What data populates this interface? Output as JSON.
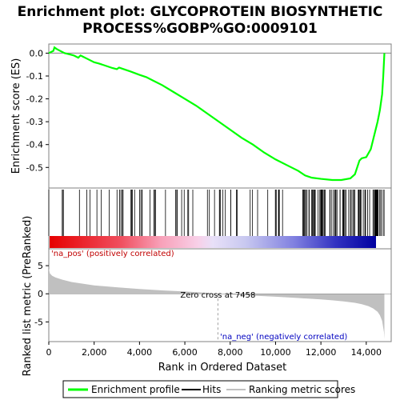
{
  "chart_data": [
    {
      "type": "line",
      "title_line1": "Enrichment plot: GLYCOPROTEIN BIOSYNTHETIC",
      "title_line2": "PROCESS%GOBP%GO:0009101",
      "ylabel": "Enrichment score (ES)",
      "ylim": [
        -0.59,
        0.04
      ],
      "xlim": [
        0,
        15100
      ],
      "yticks": [
        0.0,
        -0.1,
        -0.2,
        -0.3,
        -0.4,
        -0.5
      ],
      "ytick_labels": [
        "0.0",
        "-0.1",
        "-0.2",
        "-0.3",
        "-0.4",
        "-0.5"
      ],
      "line_color": "#00ff00",
      "series": [
        {
          "name": "Enrichment profile",
          "x": [
            0,
            100,
            200,
            250,
            350,
            500,
            700,
            900,
            1100,
            1300,
            1400,
            1500,
            1700,
            2000,
            2200,
            2500,
            2800,
            3000,
            3100,
            3300,
            3600,
            4000,
            4300,
            4600,
            5000,
            5500,
            6000,
            6500,
            7000,
            7500,
            8000,
            8500,
            9000,
            9500,
            10000,
            10500,
            11000,
            11300,
            11600,
            12000,
            12500,
            12900,
            13300,
            13500,
            13700,
            13800,
            14000,
            14200,
            14300,
            14400,
            14500,
            14600,
            14700,
            14750,
            14800
          ],
          "y": [
            0.0,
            0.005,
            0.01,
            0.025,
            0.018,
            0.01,
            0.0,
            -0.005,
            -0.01,
            -0.02,
            -0.01,
            -0.015,
            -0.025,
            -0.04,
            -0.045,
            -0.055,
            -0.065,
            -0.07,
            -0.063,
            -0.07,
            -0.08,
            -0.095,
            -0.105,
            -0.12,
            -0.14,
            -0.17,
            -0.2,
            -0.23,
            -0.265,
            -0.3,
            -0.335,
            -0.37,
            -0.4,
            -0.435,
            -0.465,
            -0.49,
            -0.515,
            -0.535,
            -0.545,
            -0.55,
            -0.555,
            -0.555,
            -0.548,
            -0.53,
            -0.47,
            -0.46,
            -0.455,
            -0.42,
            -0.38,
            -0.34,
            -0.3,
            -0.25,
            -0.18,
            -0.1,
            0.0
          ]
        }
      ]
    },
    {
      "type": "area",
      "ylabel": "Ranked list metric (PreRanked)",
      "xlabel": "Rank in Ordered Dataset",
      "ylim": [
        -8.5,
        8.0
      ],
      "xlim": [
        0,
        15100
      ],
      "yticks": [
        5,
        0,
        -5
      ],
      "ytick_labels": [
        "5",
        "0",
        "-5"
      ],
      "xticks": [
        0,
        2000,
        4000,
        6000,
        8000,
        10000,
        12000,
        14000
      ],
      "xtick_labels": [
        "0",
        "2,000",
        "4,000",
        "6,000",
        "8,000",
        "10,000",
        "12,000",
        "14,000"
      ],
      "fill_color": "#c0c0c0",
      "series": [
        {
          "name": "Ranking metric scores",
          "x": [
            0,
            50,
            150,
            300,
            600,
            1000,
            1500,
            2000,
            3000,
            4000,
            5000,
            6000,
            7000,
            7458,
            8000,
            9000,
            10000,
            11000,
            12000,
            12500,
            13000,
            13500,
            13800,
            14100,
            14300,
            14500,
            14600,
            14700,
            14780,
            14800
          ],
          "y": [
            4.5,
            3.6,
            3.2,
            2.9,
            2.5,
            2.1,
            1.8,
            1.5,
            1.15,
            0.85,
            0.6,
            0.4,
            0.18,
            0.0,
            -0.12,
            -0.32,
            -0.52,
            -0.75,
            -1.0,
            -1.15,
            -1.35,
            -1.6,
            -1.85,
            -2.2,
            -2.6,
            -3.2,
            -3.8,
            -4.8,
            -6.8,
            -8.0
          ]
        }
      ],
      "zero_cross_label": "Zero cross at 7458",
      "zero_cross": 7458,
      "pos_label": "'na_pos' (positively correlated)",
      "neg_label": "'na_neg' (negatively correlated)"
    }
  ],
  "legend": {
    "items": [
      {
        "label": "Enrichment profile",
        "color": "#00ff00"
      },
      {
        "label": "Hits",
        "color": "#000000"
      },
      {
        "label": "Ranking metric scores",
        "color": "#c0c0c0"
      }
    ]
  }
}
